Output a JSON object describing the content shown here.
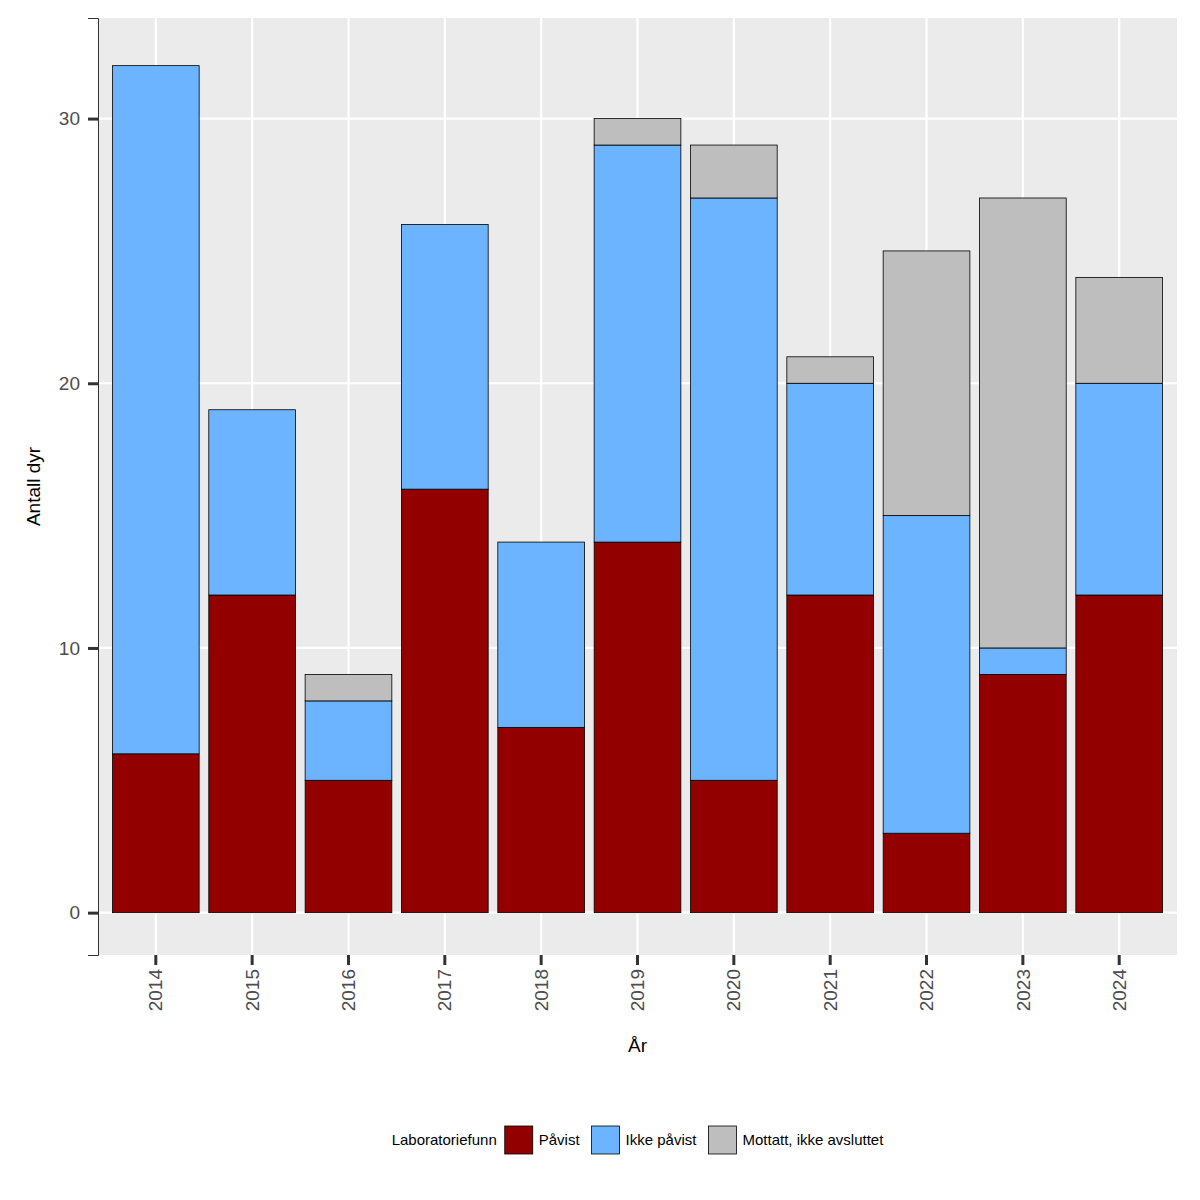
{
  "chart_data": {
    "type": "bar",
    "stacked": true,
    "grid": true,
    "legend": "bottom",
    "x_label": "År",
    "y_label": "Antall dyr",
    "legend_title": "Laboratoriefunn",
    "categories": [
      "2014",
      "2015",
      "2016",
      "2017",
      "2018",
      "2019",
      "2020",
      "2021",
      "2022",
      "2023",
      "2024"
    ],
    "series": [
      {
        "name": "Påvist",
        "color": "#930000",
        "values": [
          6,
          12,
          5,
          16,
          7,
          14,
          5,
          12,
          3,
          9,
          12
        ]
      },
      {
        "name": "Ikke påvist",
        "color": "#6cb4ff",
        "values": [
          26,
          7,
          3,
          10,
          7,
          15,
          22,
          8,
          12,
          1,
          8
        ]
      },
      {
        "name": "Mottatt, ikke avsluttet",
        "color": "#bebebe",
        "values": [
          0,
          0,
          1,
          0,
          0,
          1,
          2,
          1,
          10,
          17,
          4
        ]
      }
    ],
    "ylim": [
      -1.6,
      33.8
    ],
    "yticks": [
      0,
      10,
      20,
      30
    ]
  }
}
